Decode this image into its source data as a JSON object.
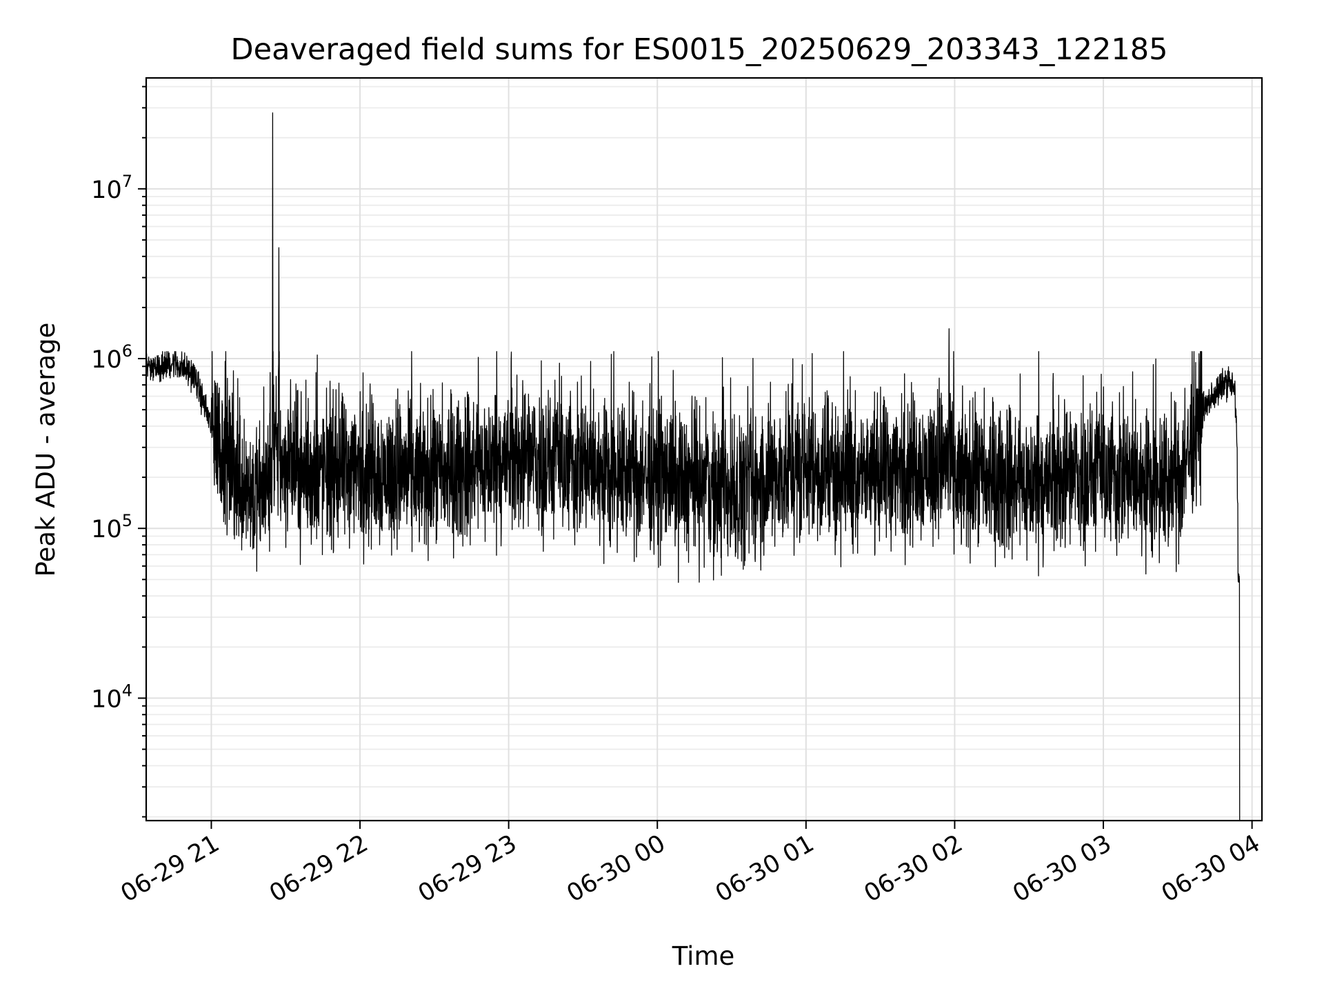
{
  "chart_data": {
    "type": "line",
    "title": "Deaveraged field sums for ES0015_20250629_203343_122185",
    "xlabel": "Time",
    "ylabel": "Peak ADU - average",
    "y_scale": "log",
    "ylim": [
      1900,
      45000000
    ],
    "xlim": [
      "2025-06-29 20:33:43",
      "2025-06-30 04:04:00"
    ],
    "grid": "major and minor, on",
    "line_color": "#000000",
    "x_ticks": [
      "06-29 21",
      "06-29 22",
      "06-29 23",
      "06-30 00",
      "06-30 01",
      "06-30 02",
      "06-30 03",
      "06-30 04"
    ],
    "y_ticks": [
      {
        "value": 10000,
        "base": "10",
        "exp": "4"
      },
      {
        "value": 100000,
        "base": "10",
        "exp": "5"
      },
      {
        "value": 1000000,
        "base": "10",
        "exp": "6"
      },
      {
        "value": 10000000,
        "base": "10",
        "exp": "7"
      }
    ],
    "series": [
      {
        "values_note": "",
        "x": [
          "2025-06-29 20:33:43",
          "2025-06-29 20:45:00",
          "2025-06-29 20:53:00",
          "2025-06-29 21:00:00",
          "2025-06-29 21:10:00",
          "2025-06-29 21:20:00",
          "2025-06-29 21:24:30",
          "2025-06-29 21:24:45",
          "2025-06-29 21:25:00",
          "2025-06-29 21:27:00",
          "2025-06-29 21:27:15",
          "2025-06-29 21:27:30",
          "2025-06-29 21:40:00",
          "2025-06-29 22:00:00",
          "2025-06-29 22:30:00",
          "2025-06-29 23:00:00",
          "2025-06-30 00:00:00",
          "2025-06-30 00:30:00",
          "2025-06-30 01:00:00",
          "2025-06-30 01:30:00",
          "2025-06-30 01:57:30",
          "2025-06-30 01:57:45",
          "2025-06-30 01:58:00",
          "2025-06-30 02:30:00",
          "2025-06-30 03:00:00",
          "2025-06-30 03:30:00",
          "2025-06-30 03:40:00",
          "2025-06-30 03:50:00",
          "2025-06-30 03:53:00",
          "2025-06-30 03:54:00",
          "2025-06-30 03:55:00"
        ],
        "values": [
          900000,
          950000,
          800000,
          400000,
          200000,
          150000,
          200000,
          28000000,
          300000,
          250000,
          4500000,
          250000,
          200000,
          220000,
          200000,
          250000,
          200000,
          160000,
          230000,
          200000,
          250000,
          1500000,
          200000,
          180000,
          200000,
          180000,
          500000,
          750000,
          650000,
          300000,
          1900
        ]
      }
    ]
  }
}
